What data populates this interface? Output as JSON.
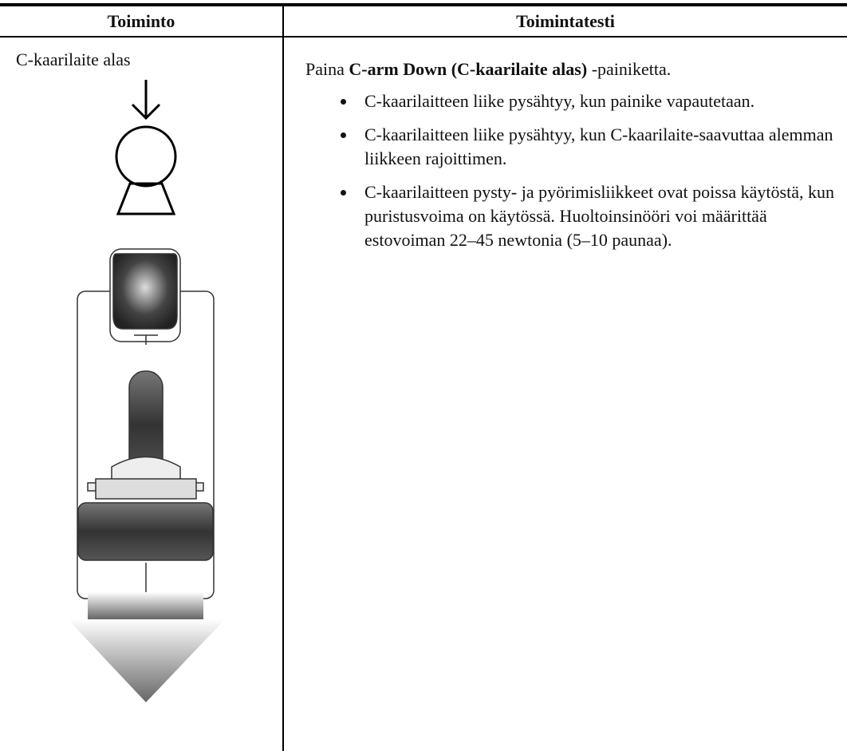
{
  "table": {
    "header": [
      "Toiminto",
      "Toimintatesti"
    ],
    "row": {
      "function": "C-kaarilaite alas",
      "test": {
        "intro": {
          "before": "Paina ",
          "bold": "C-arm Down (C-kaarilaite alas)",
          "after": " -painiketta."
        },
        "bullets": [
          "C-kaarilaitteen liike pysähtyy, kun painike vapautetaan.",
          "C-kaarilaitteen liike pysähtyy, kun C-kaarilaite-saavuttaa alemman liikkeen rajoittimen.",
          "C-kaarilaitteen pysty- ja pyörimisliikkeet ovat poissa käytöstä, kun puristusvoima on käytössä. Huoltoinsinööri voi määrittää estovoiman 22–45 newtonia (5–10 paunaa)."
        ]
      }
    }
  }
}
